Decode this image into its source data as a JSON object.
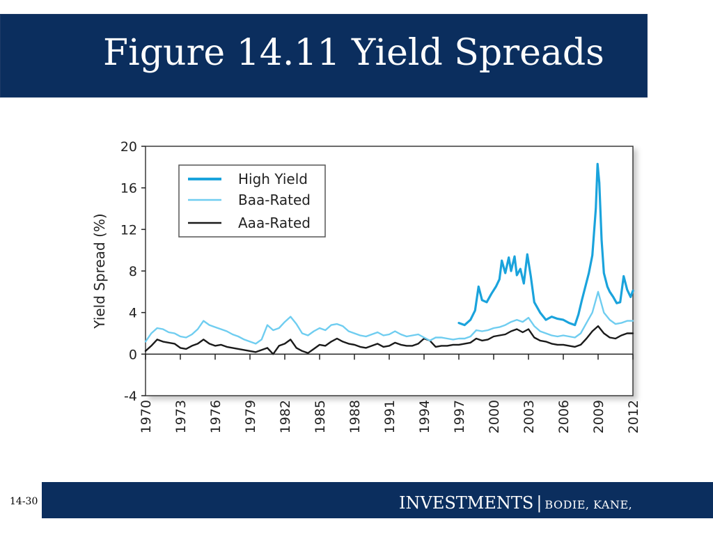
{
  "slide": {
    "title": "Figure 14.11 Yield Spreads",
    "number": "14-30",
    "footer_title": "INVESTMENTS",
    "footer_separator": "|",
    "footer_authors": "BODIE, KANE, MARCUS"
  },
  "colors": {
    "title_bar": "#0b2e5e",
    "high_yield": "#1aa3dc",
    "baa_rated": "#6fcdf0",
    "aaa_rated": "#1a1a1a"
  },
  "chart_data": {
    "type": "line",
    "title": "",
    "xlabel": "",
    "ylabel": "Yield Spread (%)",
    "xlim": [
      1970,
      2012
    ],
    "ylim": [
      -4,
      20
    ],
    "yticks": [
      20,
      16,
      12,
      8,
      4,
      0,
      -4
    ],
    "xticks": [
      "1970",
      "1973",
      "1976",
      "1979",
      "1982",
      "1985",
      "1988",
      "1991",
      "1994",
      "1997",
      "2000",
      "2003",
      "2006",
      "2009",
      "2012"
    ],
    "legend_position": "top-left",
    "grid": false,
    "series": [
      {
        "name": "High Yield",
        "x": [
          1997.0,
          1997.5,
          1998.0,
          1998.4,
          1998.7,
          1999.0,
          1999.4,
          1999.8,
          2000.2,
          2000.5,
          2000.7,
          2001.0,
          2001.3,
          2001.5,
          2001.8,
          2002.0,
          2002.3,
          2002.6,
          2002.9,
          2003.2,
          2003.5,
          2004.0,
          2004.5,
          2005.0,
          2005.5,
          2006.0,
          2006.5,
          2007.0,
          2007.3,
          2007.6,
          2007.9,
          2008.2,
          2008.5,
          2008.8,
          2008.95,
          2009.1,
          2009.3,
          2009.5,
          2009.8,
          2010.0,
          2010.3,
          2010.6,
          2010.9,
          2011.2,
          2011.5,
          2011.8,
          2012.0
        ],
        "y": [
          3.0,
          2.8,
          3.3,
          4.2,
          6.5,
          5.2,
          5.0,
          5.8,
          6.5,
          7.2,
          9.0,
          7.8,
          9.3,
          8.0,
          9.4,
          7.6,
          8.2,
          6.8,
          9.6,
          7.5,
          5.0,
          4.0,
          3.3,
          3.6,
          3.4,
          3.3,
          3.0,
          2.8,
          3.8,
          5.2,
          6.5,
          7.8,
          9.5,
          14.0,
          18.3,
          16.5,
          11.0,
          7.8,
          6.5,
          6.0,
          5.5,
          4.9,
          5.0,
          7.5,
          6.2,
          5.5,
          6.1
        ]
      },
      {
        "name": "Baa-Rated",
        "x": [
          1970.0,
          1970.5,
          1971.0,
          1971.5,
          1972.0,
          1972.5,
          1973.0,
          1973.5,
          1974.0,
          1974.5,
          1975.0,
          1975.5,
          1976.0,
          1976.5,
          1977.0,
          1977.5,
          1978.0,
          1978.5,
          1979.0,
          1979.5,
          1980.0,
          1980.5,
          1981.0,
          1981.5,
          1982.0,
          1982.5,
          1983.0,
          1983.5,
          1984.0,
          1984.5,
          1985.0,
          1985.5,
          1986.0,
          1986.5,
          1987.0,
          1987.5,
          1988.0,
          1988.5,
          1989.0,
          1989.5,
          1990.0,
          1990.5,
          1991.0,
          1991.5,
          1992.0,
          1992.5,
          1993.0,
          1993.5,
          1994.0,
          1994.5,
          1995.0,
          1995.5,
          1996.0,
          1996.5,
          1997.0,
          1997.5,
          1998.0,
          1998.5,
          1999.0,
          1999.5,
          2000.0,
          2000.5,
          2001.0,
          2001.5,
          2002.0,
          2002.5,
          2003.0,
          2003.5,
          2004.0,
          2004.5,
          2005.0,
          2005.5,
          2006.0,
          2006.5,
          2007.0,
          2007.5,
          2008.0,
          2008.5,
          2009.0,
          2009.5,
          2010.0,
          2010.5,
          2011.0,
          2011.5,
          2012.0
        ],
        "y": [
          1.2,
          2.0,
          2.5,
          2.4,
          2.1,
          2.0,
          1.7,
          1.6,
          1.9,
          2.4,
          3.2,
          2.8,
          2.6,
          2.4,
          2.2,
          1.9,
          1.7,
          1.4,
          1.2,
          1.0,
          1.4,
          2.8,
          2.3,
          2.5,
          3.1,
          3.6,
          2.9,
          2.0,
          1.8,
          2.2,
          2.5,
          2.3,
          2.8,
          2.9,
          2.7,
          2.2,
          2.0,
          1.8,
          1.7,
          1.9,
          2.1,
          1.8,
          1.9,
          2.2,
          1.9,
          1.7,
          1.8,
          1.9,
          1.6,
          1.3,
          1.6,
          1.6,
          1.5,
          1.4,
          1.5,
          1.5,
          1.7,
          2.3,
          2.2,
          2.3,
          2.5,
          2.6,
          2.8,
          3.1,
          3.3,
          3.1,
          3.5,
          2.7,
          2.2,
          2.0,
          1.8,
          1.7,
          1.8,
          1.7,
          1.6,
          2.0,
          3.0,
          4.0,
          6.0,
          4.0,
          3.3,
          2.9,
          3.0,
          3.2,
          3.2
        ]
      },
      {
        "name": "Aaa-Rated",
        "x": [
          1970.0,
          1970.5,
          1971.0,
          1971.5,
          1972.0,
          1972.5,
          1973.0,
          1973.5,
          1974.0,
          1974.5,
          1975.0,
          1975.5,
          1976.0,
          1976.5,
          1977.0,
          1977.5,
          1978.0,
          1978.5,
          1979.0,
          1979.5,
          1980.0,
          1980.5,
          1981.0,
          1981.5,
          1982.0,
          1982.5,
          1983.0,
          1983.5,
          1984.0,
          1984.5,
          1985.0,
          1985.5,
          1986.0,
          1986.5,
          1987.0,
          1987.5,
          1988.0,
          1988.5,
          1989.0,
          1989.5,
          1990.0,
          1990.5,
          1991.0,
          1991.5,
          1992.0,
          1992.5,
          1993.0,
          1993.5,
          1994.0,
          1994.5,
          1995.0,
          1995.5,
          1996.0,
          1996.5,
          1997.0,
          1997.5,
          1998.0,
          1998.5,
          1999.0,
          1999.5,
          2000.0,
          2000.5,
          2001.0,
          2001.5,
          2002.0,
          2002.5,
          2003.0,
          2003.5,
          2004.0,
          2004.5,
          2005.0,
          2005.5,
          2006.0,
          2006.5,
          2007.0,
          2007.5,
          2008.0,
          2008.5,
          2009.0,
          2009.5,
          2010.0,
          2010.5,
          2011.0,
          2011.5,
          2012.0
        ],
        "y": [
          0.3,
          0.8,
          1.4,
          1.2,
          1.1,
          1.0,
          0.6,
          0.5,
          0.8,
          1.0,
          1.4,
          1.0,
          0.8,
          0.9,
          0.7,
          0.6,
          0.5,
          0.4,
          0.3,
          0.2,
          0.4,
          0.6,
          0.0,
          0.8,
          1.0,
          1.4,
          0.6,
          0.3,
          0.1,
          0.5,
          0.9,
          0.8,
          1.2,
          1.5,
          1.2,
          1.0,
          0.9,
          0.7,
          0.6,
          0.8,
          1.0,
          0.7,
          0.8,
          1.1,
          0.9,
          0.8,
          0.8,
          1.0,
          1.5,
          1.3,
          0.7,
          0.8,
          0.8,
          0.9,
          0.9,
          1.0,
          1.1,
          1.5,
          1.3,
          1.4,
          1.7,
          1.8,
          1.9,
          2.2,
          2.4,
          2.1,
          2.4,
          1.6,
          1.3,
          1.2,
          1.0,
          0.9,
          0.9,
          0.8,
          0.7,
          0.9,
          1.5,
          2.2,
          2.7,
          2.0,
          1.6,
          1.5,
          1.8,
          2.0,
          2.0
        ]
      }
    ]
  }
}
